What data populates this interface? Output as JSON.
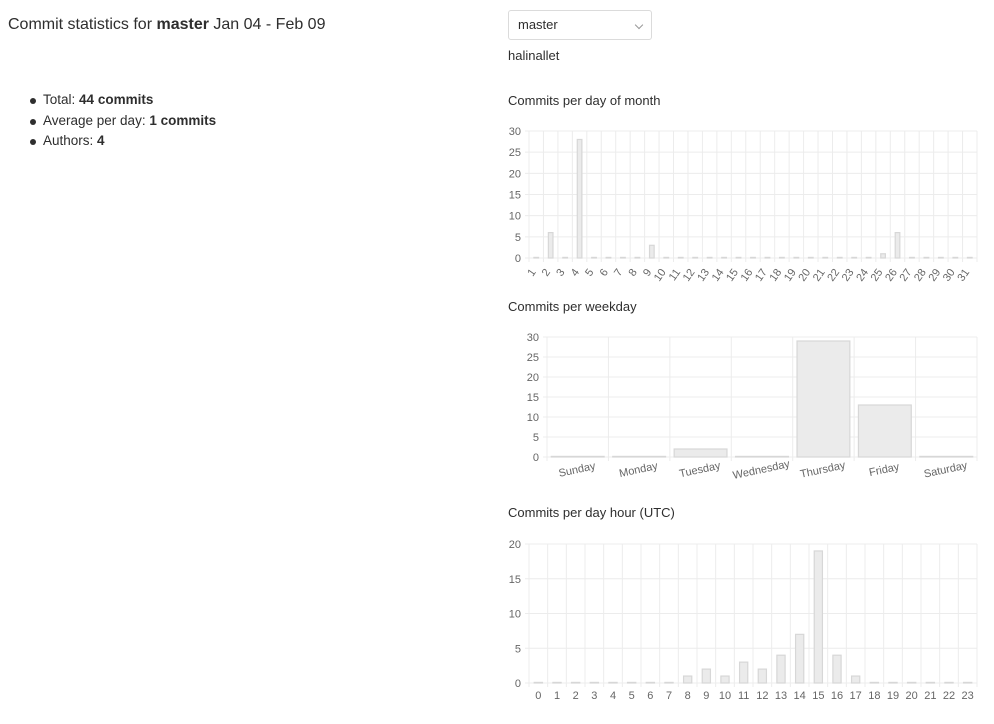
{
  "page": {
    "title_prefix": "Commit statistics for",
    "branch": "master",
    "date_range": "Jan 04 - Feb 09",
    "repo_owner": "halinallet"
  },
  "branch_select": {
    "value": "master",
    "icon": "chevron-down-icon"
  },
  "stats": [
    {
      "label": "Total:",
      "value": "44 commits"
    },
    {
      "label": "Average per day:",
      "value": "1 commits"
    },
    {
      "label": "Authors:",
      "value": "4"
    }
  ],
  "chart_data": [
    {
      "type": "bar",
      "title": "Commits per day of month",
      "categories": [
        "1",
        "2",
        "3",
        "4",
        "5",
        "6",
        "7",
        "8",
        "9",
        "10",
        "11",
        "12",
        "13",
        "14",
        "15",
        "16",
        "17",
        "18",
        "19",
        "20",
        "21",
        "22",
        "23",
        "24",
        "25",
        "26",
        "27",
        "28",
        "29",
        "30",
        "31"
      ],
      "values": [
        0,
        6,
        0,
        28,
        0,
        0,
        0,
        0,
        3,
        0,
        0,
        0,
        0,
        0,
        0,
        0,
        0,
        0,
        0,
        0,
        0,
        0,
        0,
        0,
        1,
        6,
        0,
        0,
        0,
        0,
        0
      ],
      "ylim": [
        0,
        30
      ],
      "yticks": [
        0,
        5,
        10,
        15,
        20,
        25,
        30
      ],
      "grid": true
    },
    {
      "type": "bar",
      "title": "Commits per weekday",
      "categories": [
        "Sunday",
        "Monday",
        "Tuesday",
        "Wednesday",
        "Thursday",
        "Friday",
        "Saturday"
      ],
      "values": [
        0,
        0,
        2,
        0,
        29,
        13,
        0
      ],
      "ylim": [
        0,
        30
      ],
      "yticks": [
        0,
        5,
        10,
        15,
        20,
        25,
        30
      ],
      "grid": true
    },
    {
      "type": "bar",
      "title": "Commits per day hour (UTC)",
      "categories": [
        "0",
        "1",
        "2",
        "3",
        "4",
        "5",
        "6",
        "7",
        "8",
        "9",
        "10",
        "11",
        "12",
        "13",
        "14",
        "15",
        "16",
        "17",
        "18",
        "19",
        "20",
        "21",
        "22",
        "23"
      ],
      "values": [
        0,
        0,
        0,
        0,
        0,
        0,
        0,
        0,
        1,
        2,
        1,
        3,
        2,
        4,
        7,
        19,
        4,
        1,
        0,
        0,
        0,
        0,
        0,
        0
      ],
      "ylim": [
        0,
        20
      ],
      "yticks": [
        0,
        5,
        10,
        15,
        20
      ],
      "grid": true
    }
  ]
}
